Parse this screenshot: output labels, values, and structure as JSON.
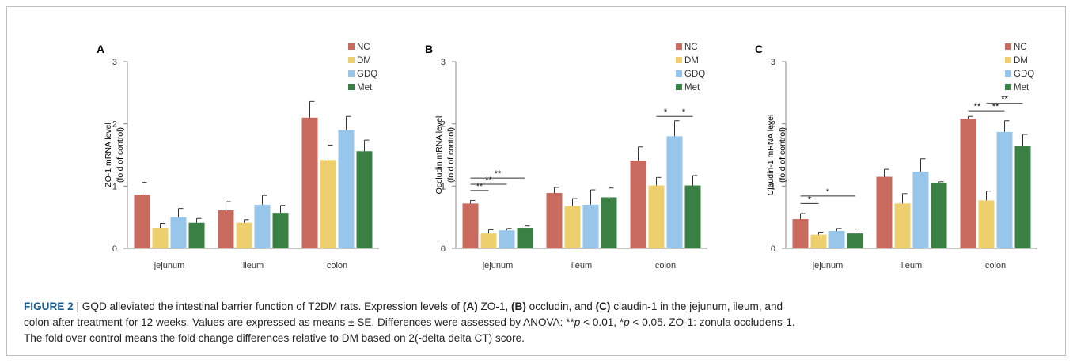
{
  "colors": {
    "NC": "#c96a5e",
    "DM": "#eecf6d",
    "GDQ": "#97c6ea",
    "Met": "#3a7f43",
    "err": "#333333"
  },
  "chart_data": [
    {
      "panel": "A",
      "type": "bar",
      "ylabel_line1": "ZO-1 mRNA level",
      "ylabel_line2": "(fold of control)",
      "ylim": [
        0,
        3
      ],
      "yticks": [
        "0",
        "1",
        "2",
        "3"
      ],
      "categories": [
        "jejunum",
        "ileum",
        "colon"
      ],
      "series": [
        {
          "name": "NC",
          "values": [
            0.86,
            0.61,
            2.1
          ],
          "errors": [
            0.2,
            0.14,
            0.26
          ]
        },
        {
          "name": "DM",
          "values": [
            0.33,
            0.41,
            1.42
          ],
          "errors": [
            0.07,
            0.05,
            0.24
          ]
        },
        {
          "name": "GDQ",
          "values": [
            0.5,
            0.7,
            1.9
          ],
          "errors": [
            0.14,
            0.15,
            0.22
          ]
        },
        {
          "name": "Met",
          "values": [
            0.41,
            0.57,
            1.56
          ],
          "errors": [
            0.07,
            0.12,
            0.18
          ]
        }
      ],
      "significance": []
    },
    {
      "panel": "B",
      "type": "bar",
      "ylabel_line1": "Occludin mRNA level",
      "ylabel_line2": "(fold of control)",
      "ylim": [
        0,
        3
      ],
      "yticks": [
        "0",
        "1",
        "2",
        "3"
      ],
      "categories": [
        "jejunum",
        "ileum",
        "colon"
      ],
      "series": [
        {
          "name": "NC",
          "values": [
            0.72,
            0.89,
            1.41
          ],
          "errors": [
            0.05,
            0.09,
            0.22
          ]
        },
        {
          "name": "DM",
          "values": [
            0.24,
            0.68,
            1.01
          ],
          "errors": [
            0.06,
            0.12,
            0.13
          ]
        },
        {
          "name": "GDQ",
          "values": [
            0.29,
            0.7,
            1.8
          ],
          "errors": [
            0.03,
            0.24,
            0.25
          ]
        },
        {
          "name": "Met",
          "values": [
            0.33,
            0.82,
            1.01
          ],
          "errors": [
            0.03,
            0.15,
            0.16
          ]
        }
      ],
      "significance": [
        {
          "cat": 0,
          "from": 0,
          "to": 1,
          "y": 0.93,
          "label": "**"
        },
        {
          "cat": 0,
          "from": 0,
          "to": 2,
          "y": 1.03,
          "label": "**"
        },
        {
          "cat": 0,
          "from": 0,
          "to": 3,
          "y": 1.13,
          "label": "**"
        },
        {
          "cat": 2,
          "from": 1,
          "to": 2,
          "y": 2.12,
          "label": "*"
        },
        {
          "cat": 2,
          "from": 2,
          "to": 3,
          "y": 2.12,
          "label": "*"
        }
      ]
    },
    {
      "panel": "C",
      "type": "bar",
      "ylabel_line1": "Claudin-1 mRNA level",
      "ylabel_line2": "(fold of control)",
      "ylim": [
        0,
        3
      ],
      "yticks": [
        "0",
        "1",
        "2",
        "3"
      ],
      "categories": [
        "jejunum",
        "ileum",
        "colon"
      ],
      "series": [
        {
          "name": "NC",
          "values": [
            0.47,
            1.15,
            2.08
          ],
          "errors": [
            0.09,
            0.12,
            0.04
          ]
        },
        {
          "name": "DM",
          "values": [
            0.22,
            0.72,
            0.77
          ],
          "errors": [
            0.04,
            0.16,
            0.15
          ]
        },
        {
          "name": "GDQ",
          "values": [
            0.28,
            1.23,
            1.87
          ],
          "errors": [
            0.04,
            0.21,
            0.18
          ]
        },
        {
          "name": "Met",
          "values": [
            0.24,
            1.05,
            1.65
          ],
          "errors": [
            0.07,
            0.02,
            0.18
          ]
        }
      ],
      "significance": [
        {
          "cat": 0,
          "from": 0,
          "to": 1,
          "y": 0.72,
          "label": "*"
        },
        {
          "cat": 0,
          "from": 0,
          "to": 3,
          "y": 0.84,
          "label": "*"
        },
        {
          "cat": 2,
          "from": 0,
          "to": 1,
          "y": 2.21,
          "label": "**"
        },
        {
          "cat": 2,
          "from": 1,
          "to": 2,
          "y": 2.21,
          "label": "**"
        },
        {
          "cat": 2,
          "from": 1,
          "to": 3,
          "y": 2.33,
          "label": "**"
        }
      ]
    }
  ],
  "caption": {
    "fig_label": "FIGURE 2",
    "sep": " | ",
    "t1": "GQD alleviated the intestinal barrier function of T2DM rats. Expression levels of ",
    "a": "(A)",
    "t2": " ZO-1, ",
    "b": "(B)",
    "t3": " occludin, and ",
    "c": "(C)",
    "t4": " claudin-1 in the jejunum, ileum, and",
    "line2": "colon after treatment for 12 weeks. Values are expressed as means ± SE. Differences were assessed by ANOVA: **",
    "p1": "p",
    "t5": " < 0.01, *",
    "p2": "p",
    "t6": " < 0.05. ZO-1: zonula occludens-1.",
    "line3": "The fold over control means the fold change differences relative to DM based on 2(-delta delta CT) score."
  }
}
